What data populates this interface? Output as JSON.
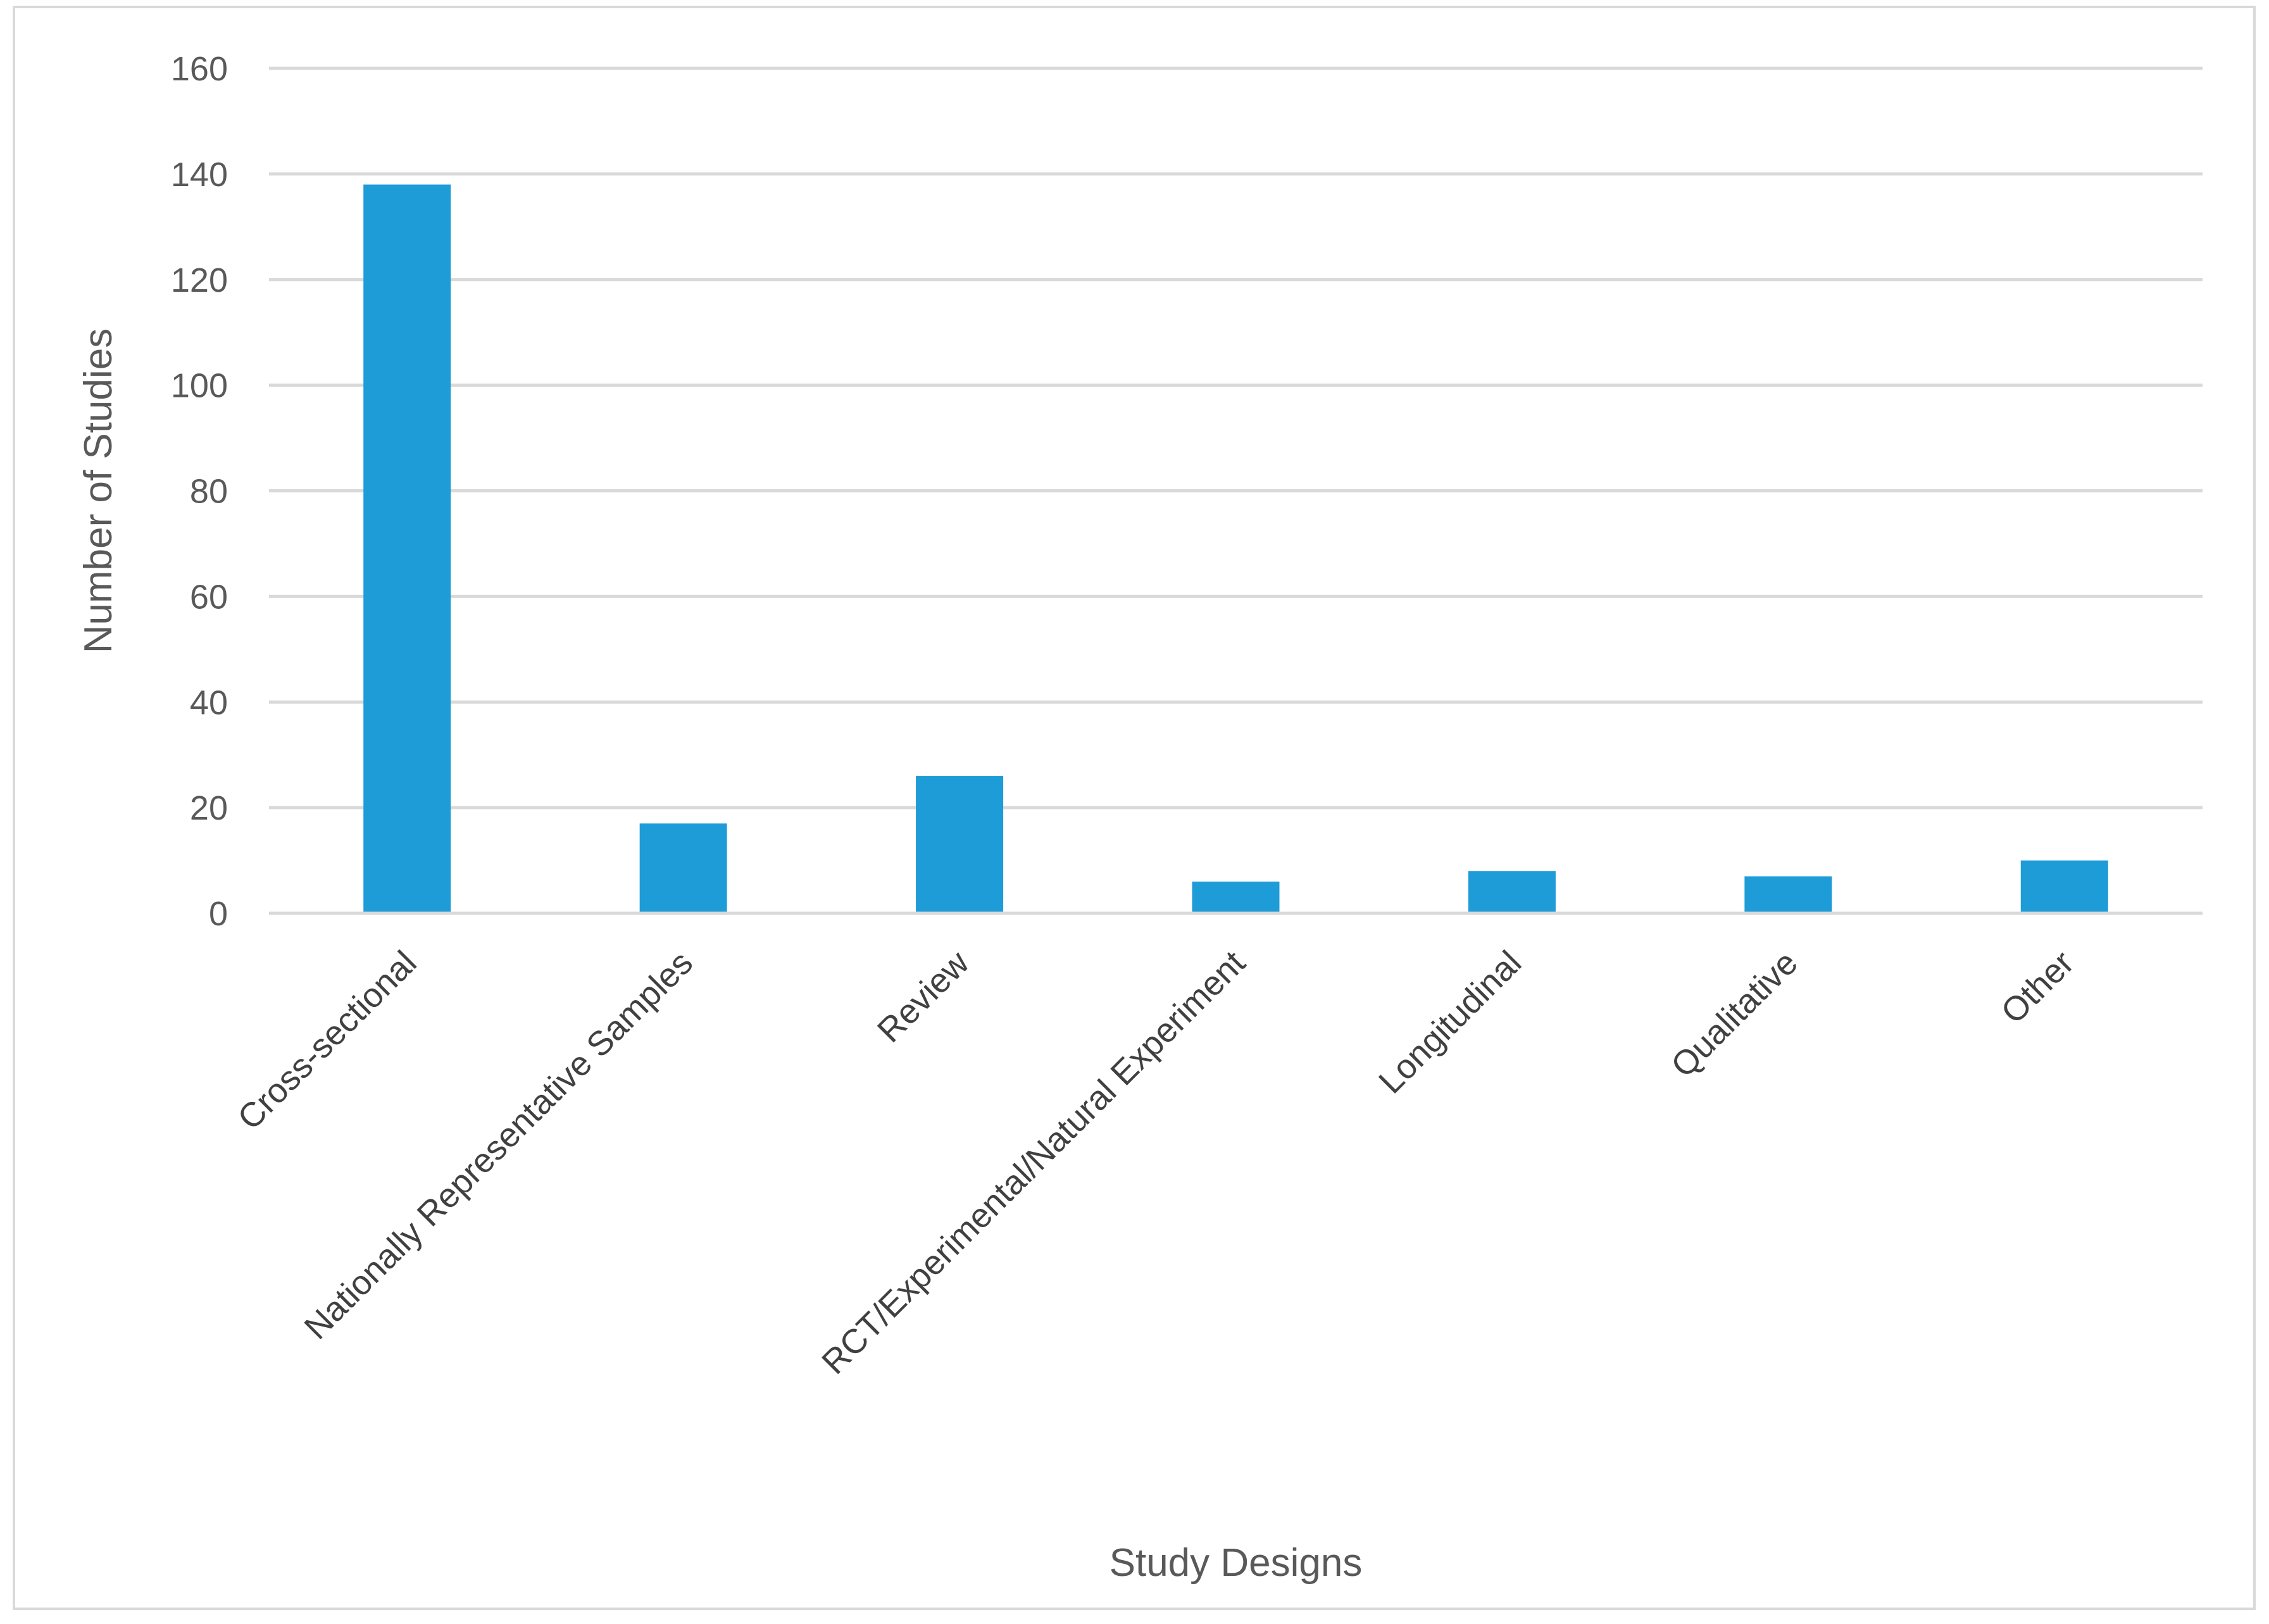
{
  "chart_data": {
    "type": "bar",
    "title": "",
    "xlabel": "Study Designs",
    "ylabel": "Number of Studies",
    "categories": [
      "Cross-sectional",
      "Nationally Representative Samples",
      "Review",
      "RCT/Experimental/Natural Experiment",
      "Longitudinal",
      "Qualitative",
      "Other"
    ],
    "values": [
      138,
      17,
      26,
      6,
      8,
      7,
      10
    ],
    "ylim": [
      0,
      160
    ],
    "yticks": [
      0,
      20,
      40,
      60,
      80,
      100,
      120,
      140,
      160
    ],
    "grid": true,
    "legend": "none",
    "colors": {
      "bar": "#1E9CD8",
      "grid": "#D9D9D9",
      "frame": "#D9D9D9"
    }
  }
}
